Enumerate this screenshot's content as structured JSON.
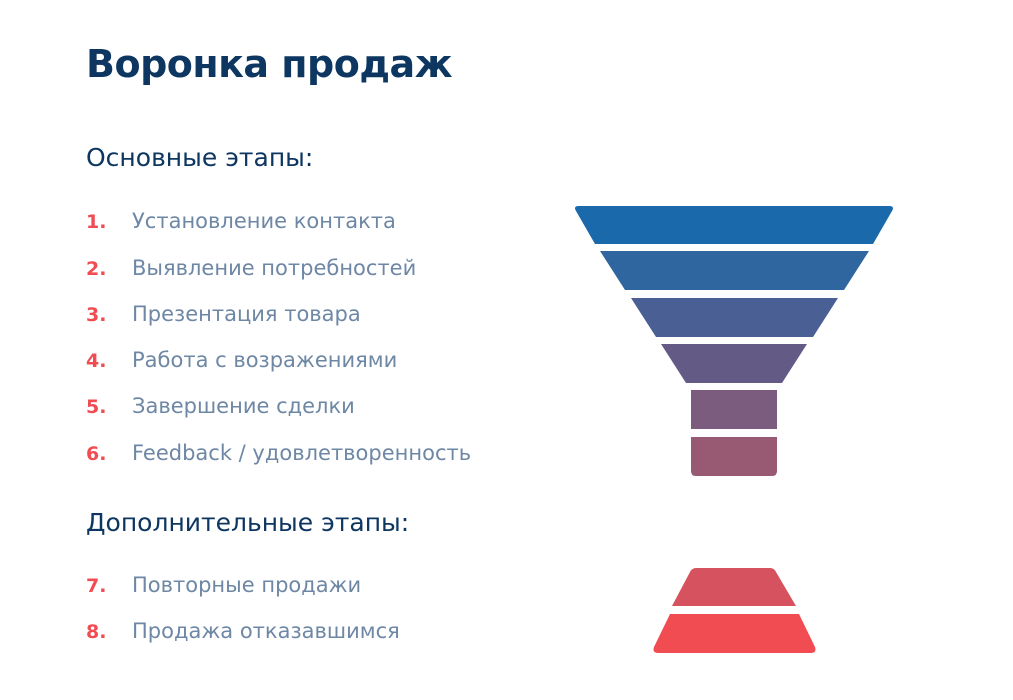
{
  "title": "Воронка продаж",
  "main_heading": "Основные этапы:",
  "main_stages": [
    {
      "num": "1.",
      "label": "Установление контакта"
    },
    {
      "num": "2.",
      "label": "Выявление потребностей"
    },
    {
      "num": "3.",
      "label": "Презентация товара"
    },
    {
      "num": "4.",
      "label": "Работа с возражениями"
    },
    {
      "num": "5.",
      "label": "Завершение сделки"
    },
    {
      "num": "6.",
      "label": "Feedback / удовлетворенность"
    }
  ],
  "extra_heading": "Дополнительные этапы:",
  "extra_stages": [
    {
      "num": "7.",
      "label": "Повторные продажи"
    },
    {
      "num": "8.",
      "label": "Продажа отказавшимся"
    }
  ],
  "colors": {
    "heading": "#0d3661",
    "number": "#f04c52",
    "item_text": "#6d87a5",
    "funnel": [
      "#1a69ab",
      "#2f66a0",
      "#4a5f93",
      "#645a86",
      "#7c5c7e",
      "#985a72",
      "#d6525e",
      "#f04c52"
    ]
  }
}
